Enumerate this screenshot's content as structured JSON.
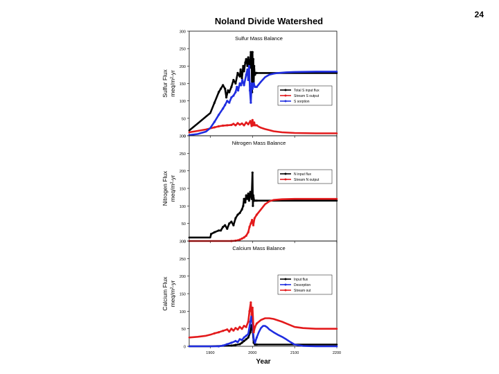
{
  "slide": {
    "number": "24"
  },
  "figure": {
    "title": "Noland Divide Watershed",
    "xlabel": "Year"
  },
  "chart_data": [
    {
      "type": "line",
      "title": "Sulfur Mass Balance",
      "ylabel_line1": "Sulfur Flux",
      "ylabel_line2": "meq/m²-yr",
      "xlim": [
        1850,
        2200
      ],
      "ylim": [
        0,
        300
      ],
      "yticks": [
        0,
        50,
        100,
        150,
        200,
        250,
        300
      ],
      "xticks": [
        1900,
        2000,
        2100,
        2200
      ],
      "legend_position": "right",
      "series": [
        {
          "name": "Total S input flux",
          "color": "#000000",
          "x": [
            1850,
            1870,
            1890,
            1900,
            1910,
            1920,
            1925,
            1930,
            1935,
            1938,
            1942,
            1945,
            1950,
            1955,
            1960,
            1965,
            1970,
            1972,
            1975,
            1978,
            1980,
            1983,
            1985,
            1988,
            1990,
            1992,
            1994,
            1996,
            1998,
            1999,
            2000,
            2001,
            2002,
            2003,
            2004,
            2005,
            2006,
            2008,
            2010,
            2020,
            2050,
            2100,
            2150,
            2200
          ],
          "y": [
            15,
            35,
            55,
            65,
            95,
            125,
            135,
            145,
            135,
            110,
            130,
            125,
            140,
            160,
            150,
            180,
            170,
            190,
            165,
            200,
            185,
            210,
            220,
            200,
            225,
            210,
            195,
            240,
            210,
            125,
            240,
            160,
            220,
            150,
            200,
            180,
            175,
            180,
            180,
            180,
            180,
            180,
            180,
            180
          ]
        },
        {
          "name": "Stream S output",
          "color": "#e31a1c",
          "x": [
            1850,
            1870,
            1890,
            1900,
            1910,
            1920,
            1930,
            1940,
            1950,
            1955,
            1960,
            1965,
            1970,
            1975,
            1980,
            1985,
            1990,
            1995,
            1998,
            2000,
            2002,
            2004,
            2006,
            2010,
            2015,
            2020,
            2030,
            2040,
            2050,
            2070,
            2100,
            2150,
            2200
          ],
          "y": [
            10,
            14,
            18,
            21,
            24,
            27,
            29,
            30,
            31,
            34,
            30,
            36,
            32,
            35,
            30,
            38,
            33,
            42,
            28,
            45,
            30,
            38,
            30,
            30,
            26,
            23,
            19,
            16,
            13,
            10,
            8,
            7,
            7
          ]
        },
        {
          "name": "S sorption",
          "color": "#1f2de0",
          "x": [
            1850,
            1870,
            1890,
            1900,
            1910,
            1920,
            1930,
            1935,
            1940,
            1945,
            1950,
            1955,
            1960,
            1963,
            1966,
            1970,
            1973,
            1976,
            1980,
            1985,
            1988,
            1990,
            1992,
            1994,
            1996,
            1998,
            2000,
            2003,
            2006,
            2010,
            2020,
            2030,
            2040,
            2050,
            2060,
            2080,
            2100,
            2150,
            2200
          ],
          "y": [
            2,
            5,
            12,
            22,
            40,
            60,
            78,
            88,
            100,
            95,
            110,
            115,
            125,
            140,
            130,
            150,
            145,
            160,
            145,
            175,
            190,
            160,
            200,
            130,
            95,
            150,
            135,
            150,
            140,
            140,
            155,
            168,
            175,
            178,
            180,
            182,
            183,
            184,
            184
          ]
        }
      ]
    },
    {
      "type": "line",
      "title": "Nitrogen Mass Balance",
      "ylabel_line1": "Nitrogen Flux",
      "ylabel_line2": "meq/m²-yr",
      "xlim": [
        1850,
        2200
      ],
      "ylim": [
        0,
        300
      ],
      "yticks": [
        0,
        50,
        100,
        150,
        200,
        250,
        300
      ],
      "xticks": [
        1900,
        2000,
        2100,
        2200
      ],
      "legend_position": "right",
      "series": [
        {
          "name": "N input flux",
          "color": "#000000",
          "x": [
            1850,
            1870,
            1890,
            1900,
            1902,
            1910,
            1920,
            1925,
            1930,
            1935,
            1940,
            1945,
            1950,
            1955,
            1960,
            1965,
            1970,
            1975,
            1978,
            1980,
            1983,
            1985,
            1988,
            1990,
            1992,
            1995,
            1998,
            2000,
            2001,
            2002,
            2004,
            2006,
            2010,
            2050,
            2100,
            2150,
            2200
          ],
          "y": [
            10,
            10,
            10,
            10,
            20,
            25,
            30,
            30,
            40,
            45,
            35,
            50,
            55,
            45,
            65,
            75,
            80,
            90,
            100,
            120,
            110,
            130,
            120,
            135,
            115,
            140,
            120,
            195,
            100,
            130,
            115,
            115,
            115,
            115,
            115,
            115,
            115
          ]
        },
        {
          "name": "Stream N output",
          "color": "#e31a1c",
          "x": [
            1850,
            1900,
            1950,
            1960,
            1965,
            1970,
            1975,
            1980,
            1985,
            1990,
            1993,
            1996,
            1999,
            2002,
            2005,
            2010,
            2020,
            2030,
            2040,
            2050,
            2070,
            2100,
            2150,
            2200
          ],
          "y": [
            0,
            0,
            0,
            1,
            2,
            4,
            7,
            10,
            15,
            25,
            40,
            50,
            60,
            45,
            65,
            75,
            90,
            105,
            113,
            117,
            119,
            120,
            120,
            120
          ]
        }
      ]
    },
    {
      "type": "line",
      "title": "Calcium Mass Balance",
      "ylabel_line1": "Calcium Flux",
      "ylabel_line2": "meq/m²-yr",
      "xlim": [
        1850,
        2200
      ],
      "ylim": [
        0,
        300
      ],
      "yticks": [
        0,
        50,
        100,
        150,
        200,
        250,
        300
      ],
      "xticks": [
        1900,
        2000,
        2100,
        2200
      ],
      "legend_position": "right",
      "series": [
        {
          "name": "Input flux",
          "color": "#000000",
          "x": [
            1850,
            1900,
            1950,
            1960,
            1970,
            1975,
            1980,
            1985,
            1990,
            1995,
            1998,
            2000,
            2003,
            2006,
            2010,
            2020,
            2050,
            2100,
            2200
          ],
          "y": [
            0,
            0,
            2,
            4,
            6,
            10,
            15,
            20,
            25,
            40,
            60,
            50,
            10,
            5,
            5,
            5,
            5,
            5,
            5
          ]
        },
        {
          "name": "Desorption",
          "color": "#1f2de0",
          "x": [
            1850,
            1900,
            1920,
            1930,
            1940,
            1950,
            1960,
            1965,
            1970,
            1975,
            1980,
            1985,
            1990,
            1995,
            1998,
            2000,
            2003,
            2006,
            2010,
            2015,
            2020,
            2025,
            2030,
            2035,
            2040,
            2050,
            2060,
            2070,
            2080,
            2090,
            2100,
            2120,
            2150,
            2200
          ],
          "y": [
            0,
            0,
            0,
            2,
            6,
            10,
            15,
            12,
            20,
            18,
            25,
            30,
            35,
            70,
            90,
            65,
            20,
            10,
            25,
            40,
            52,
            58,
            58,
            54,
            48,
            40,
            33,
            27,
            20,
            12,
            5,
            1,
            0,
            0
          ]
        },
        {
          "name": "Stream out",
          "color": "#e31a1c",
          "x": [
            1850,
            1870,
            1890,
            1900,
            1910,
            1920,
            1930,
            1940,
            1945,
            1950,
            1955,
            1960,
            1965,
            1970,
            1975,
            1980,
            1985,
            1990,
            1993,
            1996,
            1998,
            2000,
            2003,
            2006,
            2010,
            2020,
            2030,
            2040,
            2050,
            2060,
            2070,
            2080,
            2090,
            2100,
            2120,
            2150,
            2200
          ],
          "y": [
            25,
            27,
            30,
            33,
            37,
            40,
            44,
            48,
            42,
            50,
            45,
            52,
            48,
            55,
            50,
            58,
            55,
            70,
            100,
            125,
            90,
            110,
            40,
            55,
            65,
            75,
            80,
            80,
            78,
            74,
            70,
            65,
            60,
            55,
            52,
            50,
            50
          ]
        }
      ]
    }
  ]
}
